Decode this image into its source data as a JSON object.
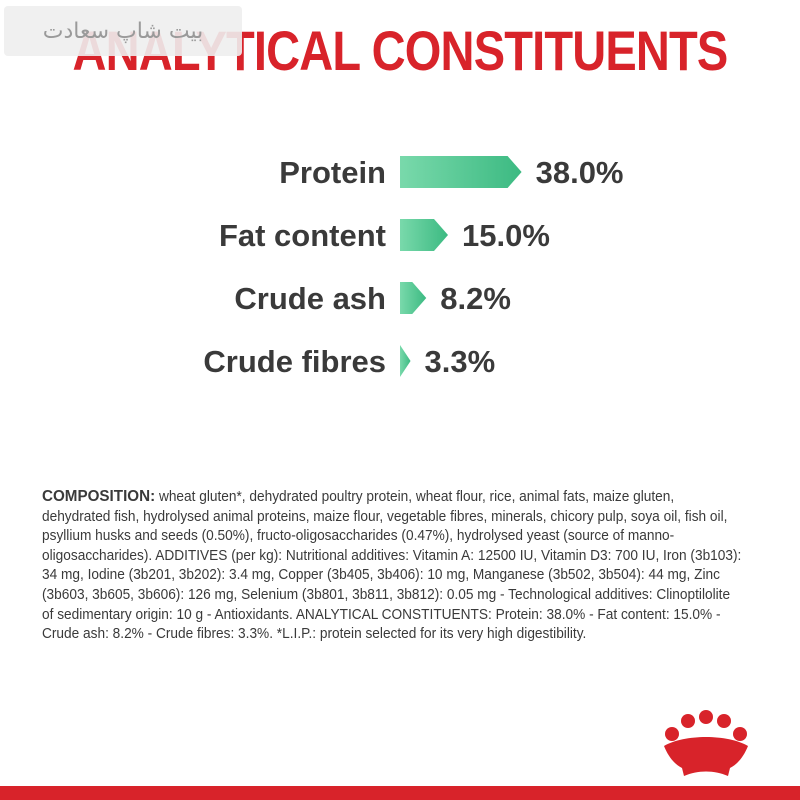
{
  "watermark": "بیت شاپ سعادت",
  "title": "ANALYTICAL CONSTITUENTS",
  "chart_data": {
    "type": "bar",
    "orientation": "horizontal",
    "categories": [
      "Protein",
      "Fat content",
      "Crude ash",
      "Crude fibres"
    ],
    "values": [
      38.0,
      15.0,
      8.2,
      3.3
    ],
    "value_labels": [
      "38.0%",
      "15.0%",
      "8.2%",
      "3.3%"
    ],
    "title": "ANALYTICAL CONSTITUENTS",
    "xlabel": "",
    "ylabel": "",
    "grid": false,
    "legend": "none",
    "bar_color_start": "#79d9ab",
    "bar_color_end": "#3cba82"
  },
  "composition": {
    "label": "COMPOSITION:",
    "text": "wheat gluten*, dehydrated poultry protein, wheat flour, rice, animal fats, maize gluten, dehydrated fish, hydrolysed animal proteins, maize flour, vegetable fibres, minerals, chicory pulp, soya oil, fish oil, psyllium husks and seeds (0.50%), fructo-oligosaccharides (0.47%), hydrolysed yeast (source of manno-oligosaccharides). ADDITIVES (per kg): Nutritional additives: Vitamin A: 12500 IU, Vitamin D3: 700 IU, Iron (3b103): 34 mg, Iodine (3b201, 3b202): 3.4 mg, Copper (3b405, 3b406): 10 mg, Manganese (3b502, 3b504): 44 mg, Zinc (3b603, 3b605, 3b606): 126 mg, Selenium (3b801, 3b811, 3b812): 0.05 mg - Technological additives: Clinoptilolite of sedimentary origin: 10 g - Antioxidants. ANALYTICAL CONSTITUENTS: Protein: 38.0% - Fat content: 15.0% - Crude ash: 8.2% - Crude fibres: 3.3%. *L.I.P.: protein selected for its very high digestibility."
  },
  "brand_color": "#d8232a",
  "logo_icon": "royal-crown-icon"
}
